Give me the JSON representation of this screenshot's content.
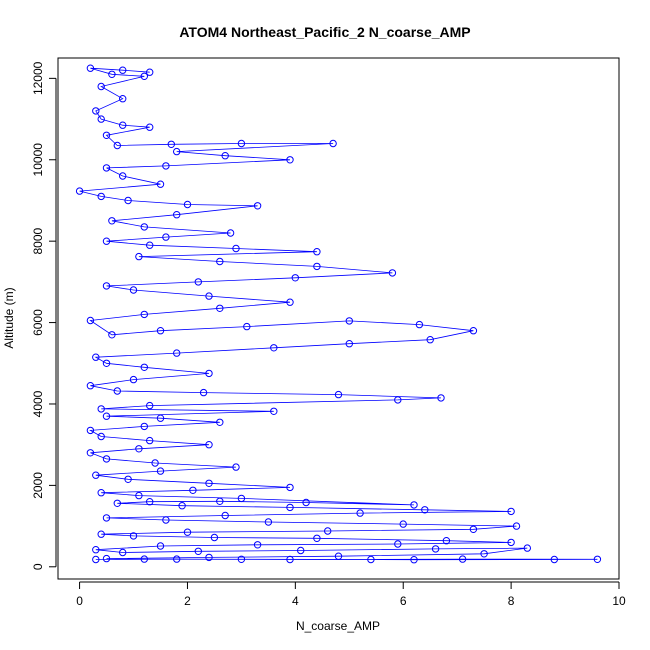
{
  "chart_data": {
    "type": "scatter",
    "title": "ATOM4 Northeast_Pacific_2 N_coarse_AMP",
    "xlabel": "N_coarse_AMP",
    "ylabel": "Altitude (m)",
    "xlim": [
      -0.4,
      10
    ],
    "ylim": [
      -300,
      12500
    ],
    "xticks": [
      0,
      2,
      4,
      6,
      8,
      10
    ],
    "yticks": [
      0,
      2000,
      4000,
      6000,
      8000,
      10000,
      12000
    ],
    "grid": false,
    "legend": "none",
    "marker": "open-circle",
    "connect_points": true,
    "series": [
      {
        "color": "#0000ff",
        "points": [
          [
            0.3,
            180
          ],
          [
            1.8,
            190
          ],
          [
            3.9,
            180
          ],
          [
            6.2,
            175
          ],
          [
            8.8,
            180
          ],
          [
            9.6,
            185
          ],
          [
            7.1,
            190
          ],
          [
            5.4,
            180
          ],
          [
            3.0,
            185
          ],
          [
            1.2,
            190
          ],
          [
            0.5,
            200
          ],
          [
            2.4,
            230
          ],
          [
            4.8,
            260
          ],
          [
            7.5,
            320
          ],
          [
            8.3,
            460
          ],
          [
            6.6,
            440
          ],
          [
            4.1,
            400
          ],
          [
            2.2,
            380
          ],
          [
            0.8,
            350
          ],
          [
            0.3,
            420
          ],
          [
            1.5,
            510
          ],
          [
            3.3,
            540
          ],
          [
            5.9,
            560
          ],
          [
            8.0,
            600
          ],
          [
            6.8,
            640
          ],
          [
            4.4,
            700
          ],
          [
            2.5,
            720
          ],
          [
            1.0,
            760
          ],
          [
            0.4,
            800
          ],
          [
            2.0,
            850
          ],
          [
            4.6,
            880
          ],
          [
            7.3,
            920
          ],
          [
            8.1,
            1000
          ],
          [
            6.0,
            1050
          ],
          [
            3.5,
            1100
          ],
          [
            1.6,
            1150
          ],
          [
            0.5,
            1200
          ],
          [
            2.7,
            1260
          ],
          [
            5.2,
            1320
          ],
          [
            8.0,
            1360
          ],
          [
            6.4,
            1400
          ],
          [
            3.9,
            1460
          ],
          [
            1.9,
            1500
          ],
          [
            0.7,
            1560
          ],
          [
            1.3,
            1600
          ],
          [
            2.6,
            1610
          ],
          [
            4.2,
            1580
          ],
          [
            6.2,
            1520
          ],
          [
            3.0,
            1680
          ],
          [
            1.1,
            1750
          ],
          [
            0.4,
            1820
          ],
          [
            2.1,
            1880
          ],
          [
            3.9,
            1950
          ],
          [
            2.4,
            2050
          ],
          [
            0.9,
            2150
          ],
          [
            0.3,
            2250
          ],
          [
            1.5,
            2350
          ],
          [
            2.9,
            2450
          ],
          [
            1.4,
            2550
          ],
          [
            0.5,
            2650
          ],
          [
            0.2,
            2800
          ],
          [
            1.1,
            2900
          ],
          [
            2.4,
            3000
          ],
          [
            1.3,
            3100
          ],
          [
            0.4,
            3200
          ],
          [
            0.2,
            3350
          ],
          [
            1.2,
            3450
          ],
          [
            2.6,
            3550
          ],
          [
            1.5,
            3650
          ],
          [
            0.5,
            3700
          ],
          [
            3.6,
            3820
          ],
          [
            0.4,
            3880
          ],
          [
            1.3,
            3960
          ],
          [
            5.9,
            4100
          ],
          [
            6.7,
            4150
          ],
          [
            4.8,
            4230
          ],
          [
            2.3,
            4280
          ],
          [
            0.7,
            4320
          ],
          [
            0.2,
            4450
          ],
          [
            1.0,
            4600
          ],
          [
            2.4,
            4750
          ],
          [
            1.2,
            4900
          ],
          [
            0.5,
            5000
          ],
          [
            0.3,
            5150
          ],
          [
            1.8,
            5250
          ],
          [
            3.6,
            5380
          ],
          [
            5.0,
            5480
          ],
          [
            6.5,
            5580
          ],
          [
            7.3,
            5800
          ],
          [
            6.3,
            5950
          ],
          [
            5.0,
            6040
          ],
          [
            3.1,
            5900
          ],
          [
            1.5,
            5800
          ],
          [
            0.6,
            5700
          ],
          [
            0.2,
            6050
          ],
          [
            1.2,
            6200
          ],
          [
            2.6,
            6350
          ],
          [
            3.9,
            6500
          ],
          [
            2.4,
            6650
          ],
          [
            1.0,
            6800
          ],
          [
            0.5,
            6900
          ],
          [
            2.2,
            7000
          ],
          [
            4.0,
            7100
          ],
          [
            5.8,
            7220
          ],
          [
            4.4,
            7380
          ],
          [
            2.6,
            7500
          ],
          [
            1.1,
            7620
          ],
          [
            4.4,
            7740
          ],
          [
            2.9,
            7820
          ],
          [
            1.3,
            7900
          ],
          [
            0.5,
            8000
          ],
          [
            1.6,
            8100
          ],
          [
            2.8,
            8200
          ],
          [
            1.2,
            8350
          ],
          [
            0.6,
            8500
          ],
          [
            1.8,
            8650
          ],
          [
            3.3,
            8870
          ],
          [
            2.0,
            8900
          ],
          [
            0.9,
            9000
          ],
          [
            0.4,
            9100
          ],
          [
            0.0,
            9230
          ],
          [
            1.5,
            9400
          ],
          [
            0.8,
            9600
          ],
          [
            0.5,
            9800
          ],
          [
            1.6,
            9850
          ],
          [
            3.9,
            10000
          ],
          [
            2.7,
            10100
          ],
          [
            1.8,
            10200
          ],
          [
            4.7,
            10400
          ],
          [
            3.0,
            10400
          ],
          [
            1.7,
            10380
          ],
          [
            0.7,
            10350
          ],
          [
            0.5,
            10600
          ],
          [
            1.3,
            10800
          ],
          [
            0.8,
            10850
          ],
          [
            0.4,
            11000
          ],
          [
            0.3,
            11200
          ],
          [
            0.8,
            11500
          ],
          [
            0.4,
            11800
          ],
          [
            1.2,
            12050
          ],
          [
            0.6,
            12100
          ],
          [
            0.2,
            12250
          ],
          [
            0.8,
            12200
          ],
          [
            1.3,
            12150
          ]
        ]
      }
    ]
  }
}
